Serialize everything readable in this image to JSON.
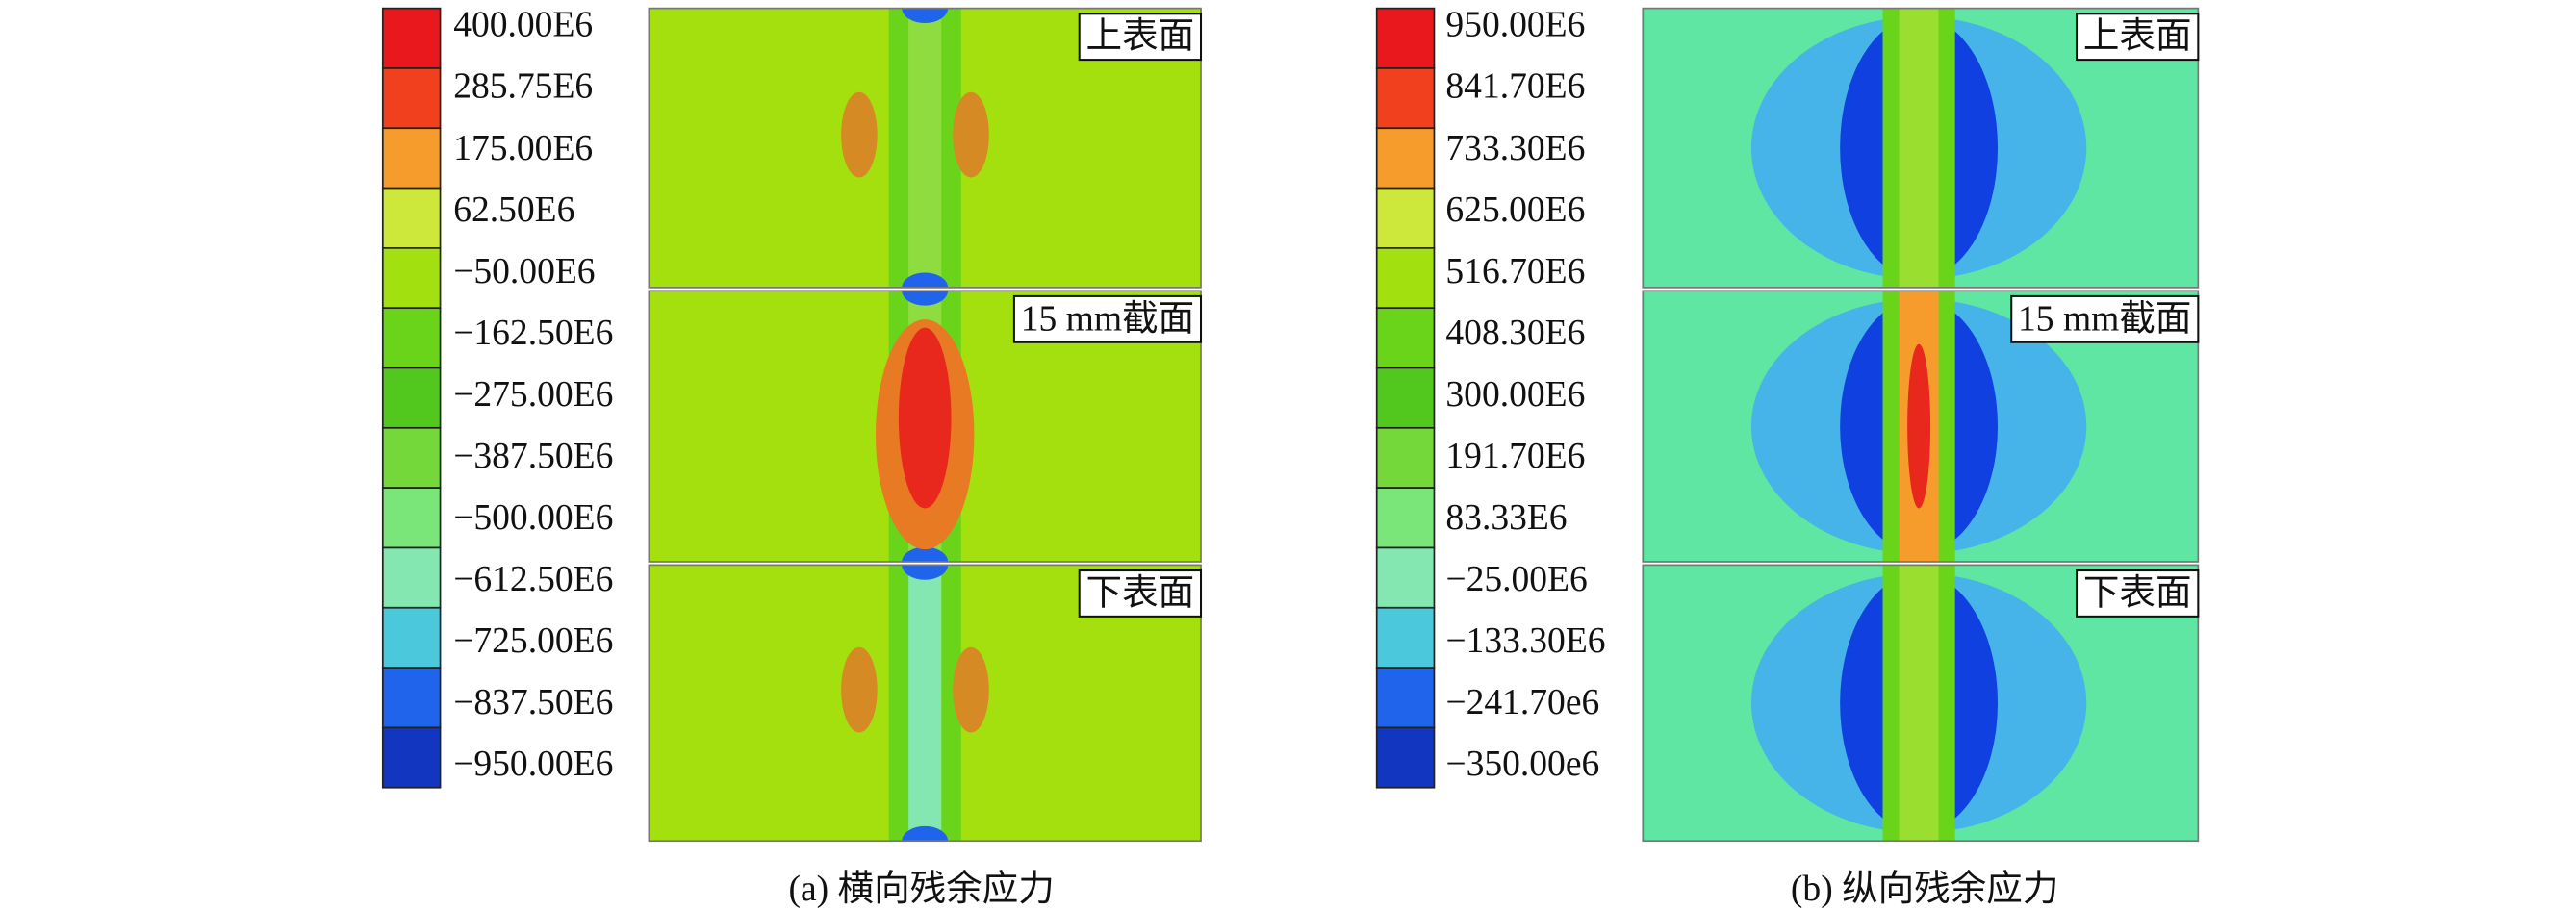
{
  "panels": [
    {
      "legend": [
        "400.00E6",
        "285.75E6",
        "175.00E6",
        "62.50E6",
        "−50.00E6",
        "−162.50E6",
        "−275.00E6",
        "−387.50E6",
        "−500.00E6",
        "−612.50E6",
        "−725.00E6",
        "−837.50E6",
        "−950.00E6"
      ],
      "sections": [
        "上表面",
        "15 mm截面",
        "下表面"
      ],
      "caption": "(a) 横向残余应力"
    },
    {
      "legend": [
        "950.00E6",
        "841.70E6",
        "733.30E6",
        "625.00E6",
        "516.70E6",
        "408.30E6",
        "300.00E6",
        "191.70E6",
        "83.33E6",
        "−25.00E6",
        "−133.30E6",
        "−241.70e6",
        "−350.00e6"
      ],
      "sections": [
        "上表面",
        "15 mm截面",
        "下表面"
      ],
      "caption": "(b) 纵向残余应力"
    }
  ]
}
